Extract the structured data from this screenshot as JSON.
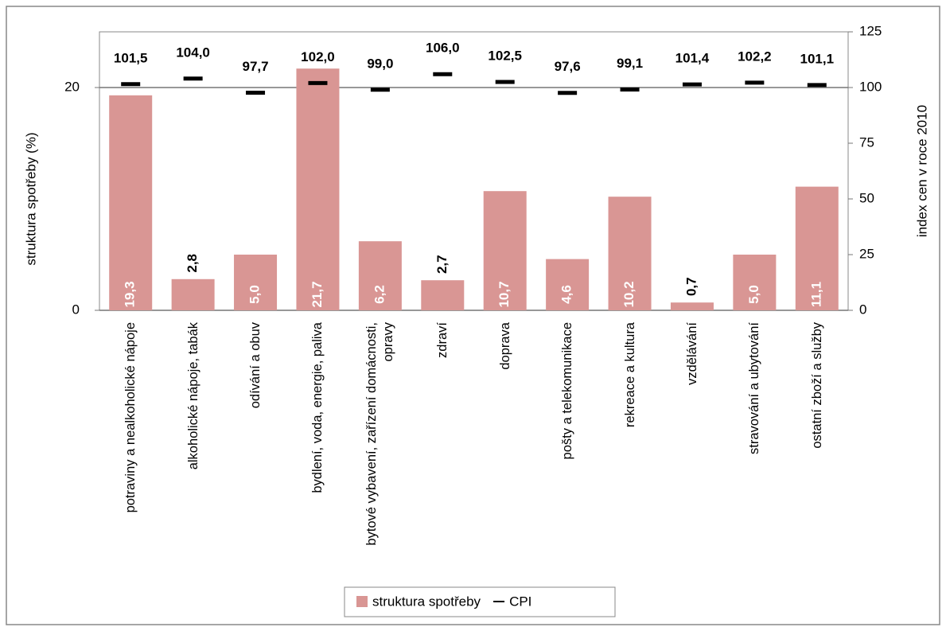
{
  "chart_data": {
    "type": "bar",
    "categories": [
      "potraviny a nealkoholické nápoje",
      "alkoholické nápoje, tabák",
      "odívání a obuv",
      "bydlení, voda, energie, paliva",
      "bytové vybavení, zařízení domácnosti, opravy",
      "zdraví",
      "doprava",
      "pošty a telekomunikace",
      "rekreace  a kultura",
      "vzdělávání",
      "stravování  a ubytování",
      "ostatní zboží a služby"
    ],
    "series": [
      {
        "name": "struktura spotřeby",
        "type": "bar",
        "color": "#d99694",
        "axis": "y",
        "values": [
          19.3,
          2.8,
          5.0,
          21.7,
          6.2,
          2.7,
          10.7,
          4.6,
          10.2,
          0.7,
          5.0,
          11.1
        ],
        "value_labels": [
          "19,3",
          "2,8",
          "5,0",
          "21,7",
          "6,2",
          "2,7",
          "10,7",
          "4,6",
          "10,2",
          "0,7",
          "5,0",
          "11,1"
        ]
      },
      {
        "name": "CPI",
        "type": "marker",
        "color": "#000000",
        "axis": "y2",
        "values": [
          101.5,
          104.0,
          97.7,
          102.0,
          99.0,
          106.0,
          102.5,
          97.6,
          99.1,
          101.4,
          102.2,
          101.1
        ],
        "value_labels": [
          "101,5",
          "104,0",
          "97,7",
          "102,0",
          "99,0",
          "106,0",
          "102,5",
          "97,6",
          "99,1",
          "101,4",
          "102,2",
          "101,1"
        ]
      }
    ],
    "ylabel": "struktura spotřeby (%)",
    "y2label": "index cen v roce 2010",
    "ylim": [
      0,
      25
    ],
    "yticks": [
      0,
      20
    ],
    "y2lim": [
      0,
      125
    ],
    "y2ticks": [
      0,
      25,
      50,
      75,
      100,
      125
    ],
    "grid": true,
    "legend": "bottom"
  }
}
